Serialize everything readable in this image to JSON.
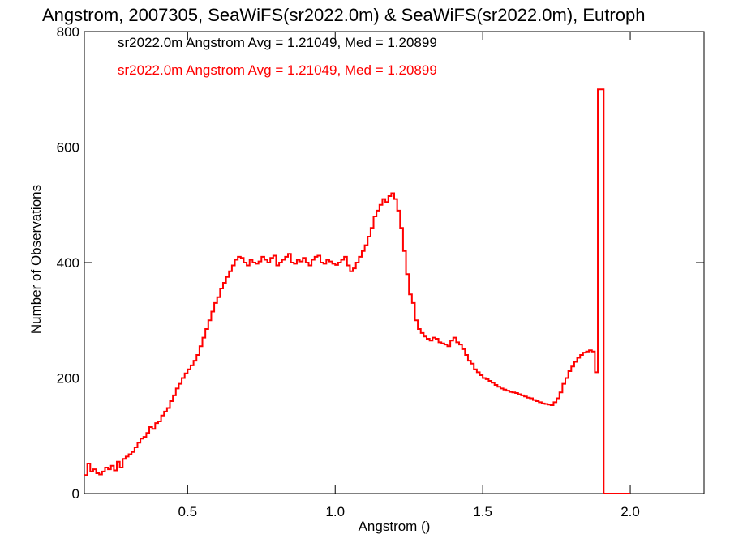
{
  "chart_data": {
    "type": "histogram",
    "title": "Angstrom, 2007305, SeaWiFS(sr2022.0m) & SeaWiFS(sr2022.0m), Eutroph",
    "xlabel": "Angstrom ()",
    "ylabel": "Number of Observations",
    "xlim": [
      0.15,
      2.25
    ],
    "ylim": [
      0,
      800
    ],
    "x_ticks": [
      0.5,
      1.0,
      1.5,
      2.0
    ],
    "x_tick_labels": [
      "0.5",
      "1.0",
      "1.5",
      "2.0"
    ],
    "y_ticks": [
      0,
      200,
      400,
      600,
      800
    ],
    "y_tick_labels": [
      "0",
      "200",
      "400",
      "600",
      "800"
    ],
    "grid": false,
    "annotations": [
      {
        "text": "sr2022.0m Angstrom Avg = 1.21049, Med = 1.20899",
        "color": "#000000"
      },
      {
        "text": "sr2022.0m Angstrom Avg = 1.21049, Med = 1.20899",
        "color": "#ff0000"
      }
    ],
    "series": [
      {
        "color": "#ff0000",
        "bin_start": 0.15,
        "bin_width": 0.01,
        "values": [
          32,
          52,
          38,
          42,
          35,
          33,
          38,
          45,
          42,
          48,
          40,
          55,
          45,
          60,
          64,
          68,
          72,
          80,
          88,
          95,
          98,
          105,
          115,
          112,
          122,
          125,
          135,
          142,
          148,
          160,
          170,
          182,
          190,
          200,
          208,
          215,
          222,
          230,
          240,
          255,
          270,
          285,
          300,
          315,
          330,
          340,
          355,
          365,
          375,
          385,
          395,
          405,
          410,
          408,
          400,
          395,
          405,
          400,
          398,
          402,
          410,
          405,
          400,
          408,
          412,
          395,
          400,
          405,
          410,
          415,
          400,
          398,
          405,
          402,
          408,
          400,
          395,
          405,
          410,
          412,
          400,
          398,
          405,
          402,
          398,
          396,
          400,
          405,
          410,
          395,
          385,
          390,
          400,
          410,
          420,
          430,
          445,
          460,
          480,
          490,
          500,
          510,
          505,
          515,
          520,
          510,
          490,
          460,
          420,
          380,
          345,
          330,
          300,
          285,
          278,
          272,
          268,
          265,
          270,
          268,
          262,
          260,
          258,
          255,
          265,
          270,
          262,
          258,
          250,
          240,
          230,
          225,
          215,
          210,
          205,
          200,
          198,
          195,
          192,
          188,
          185,
          182,
          180,
          178,
          176,
          175,
          174,
          172,
          170,
          168,
          166,
          165,
          162,
          160,
          158,
          156,
          155,
          154,
          153,
          158,
          165,
          175,
          190,
          200,
          212,
          220,
          228,
          235,
          240,
          244,
          246,
          248,
          246,
          210,
          700,
          700,
          0,
          0,
          0,
          0,
          0,
          0,
          0,
          0,
          0
        ]
      }
    ]
  }
}
